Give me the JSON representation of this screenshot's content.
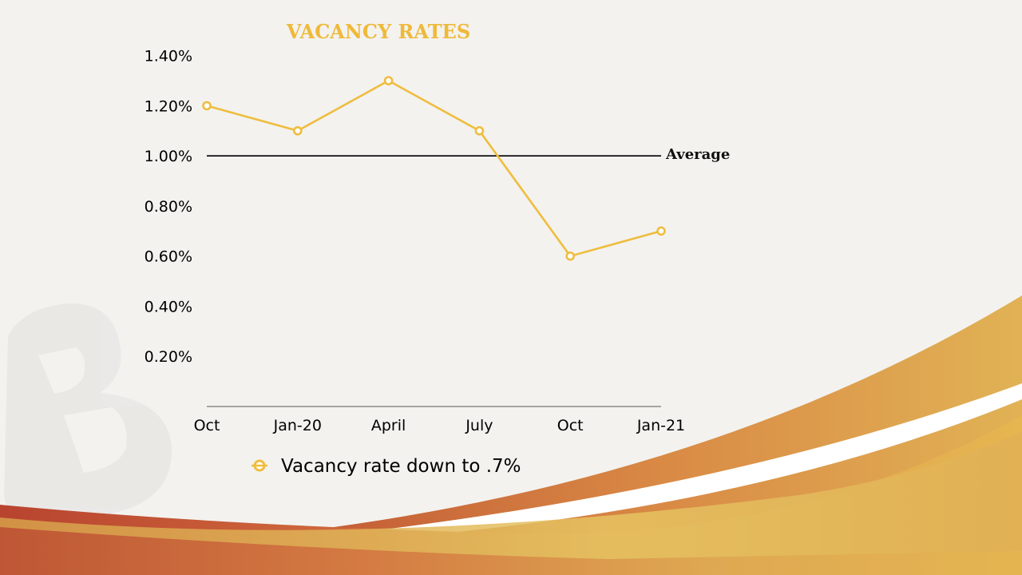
{
  "slide": {
    "title": "VACANCY RATES",
    "title_color": "#efb93a",
    "watermark_icon": "b-logo-watermark"
  },
  "chart_data": {
    "type": "line",
    "title": "VACANCY RATES",
    "xlabel": "",
    "ylabel": "",
    "categories": [
      "Oct",
      "Jan-20",
      "April",
      "July",
      "Oct",
      "Jan-21"
    ],
    "series": [
      {
        "name": "Vacancy rate down to .7%",
        "values": [
          1.2,
          1.1,
          1.3,
          1.1,
          0.6,
          0.7
        ],
        "color": "#efbd3e"
      }
    ],
    "yticks": [
      0.2,
      0.4,
      0.6,
      0.8,
      1.0,
      1.2,
      1.4
    ],
    "ytick_labels": [
      "0.20%",
      "0.40%",
      "0.60%",
      "0.80%",
      "1.00%",
      "1.20%",
      "1.40%"
    ],
    "ylim": [
      0,
      1.4
    ],
    "reference_line": {
      "label": "Average",
      "value": 1.0,
      "color": "#000000"
    },
    "legend": {
      "position": "bottom",
      "marker": "open-circle"
    },
    "grid": false
  }
}
